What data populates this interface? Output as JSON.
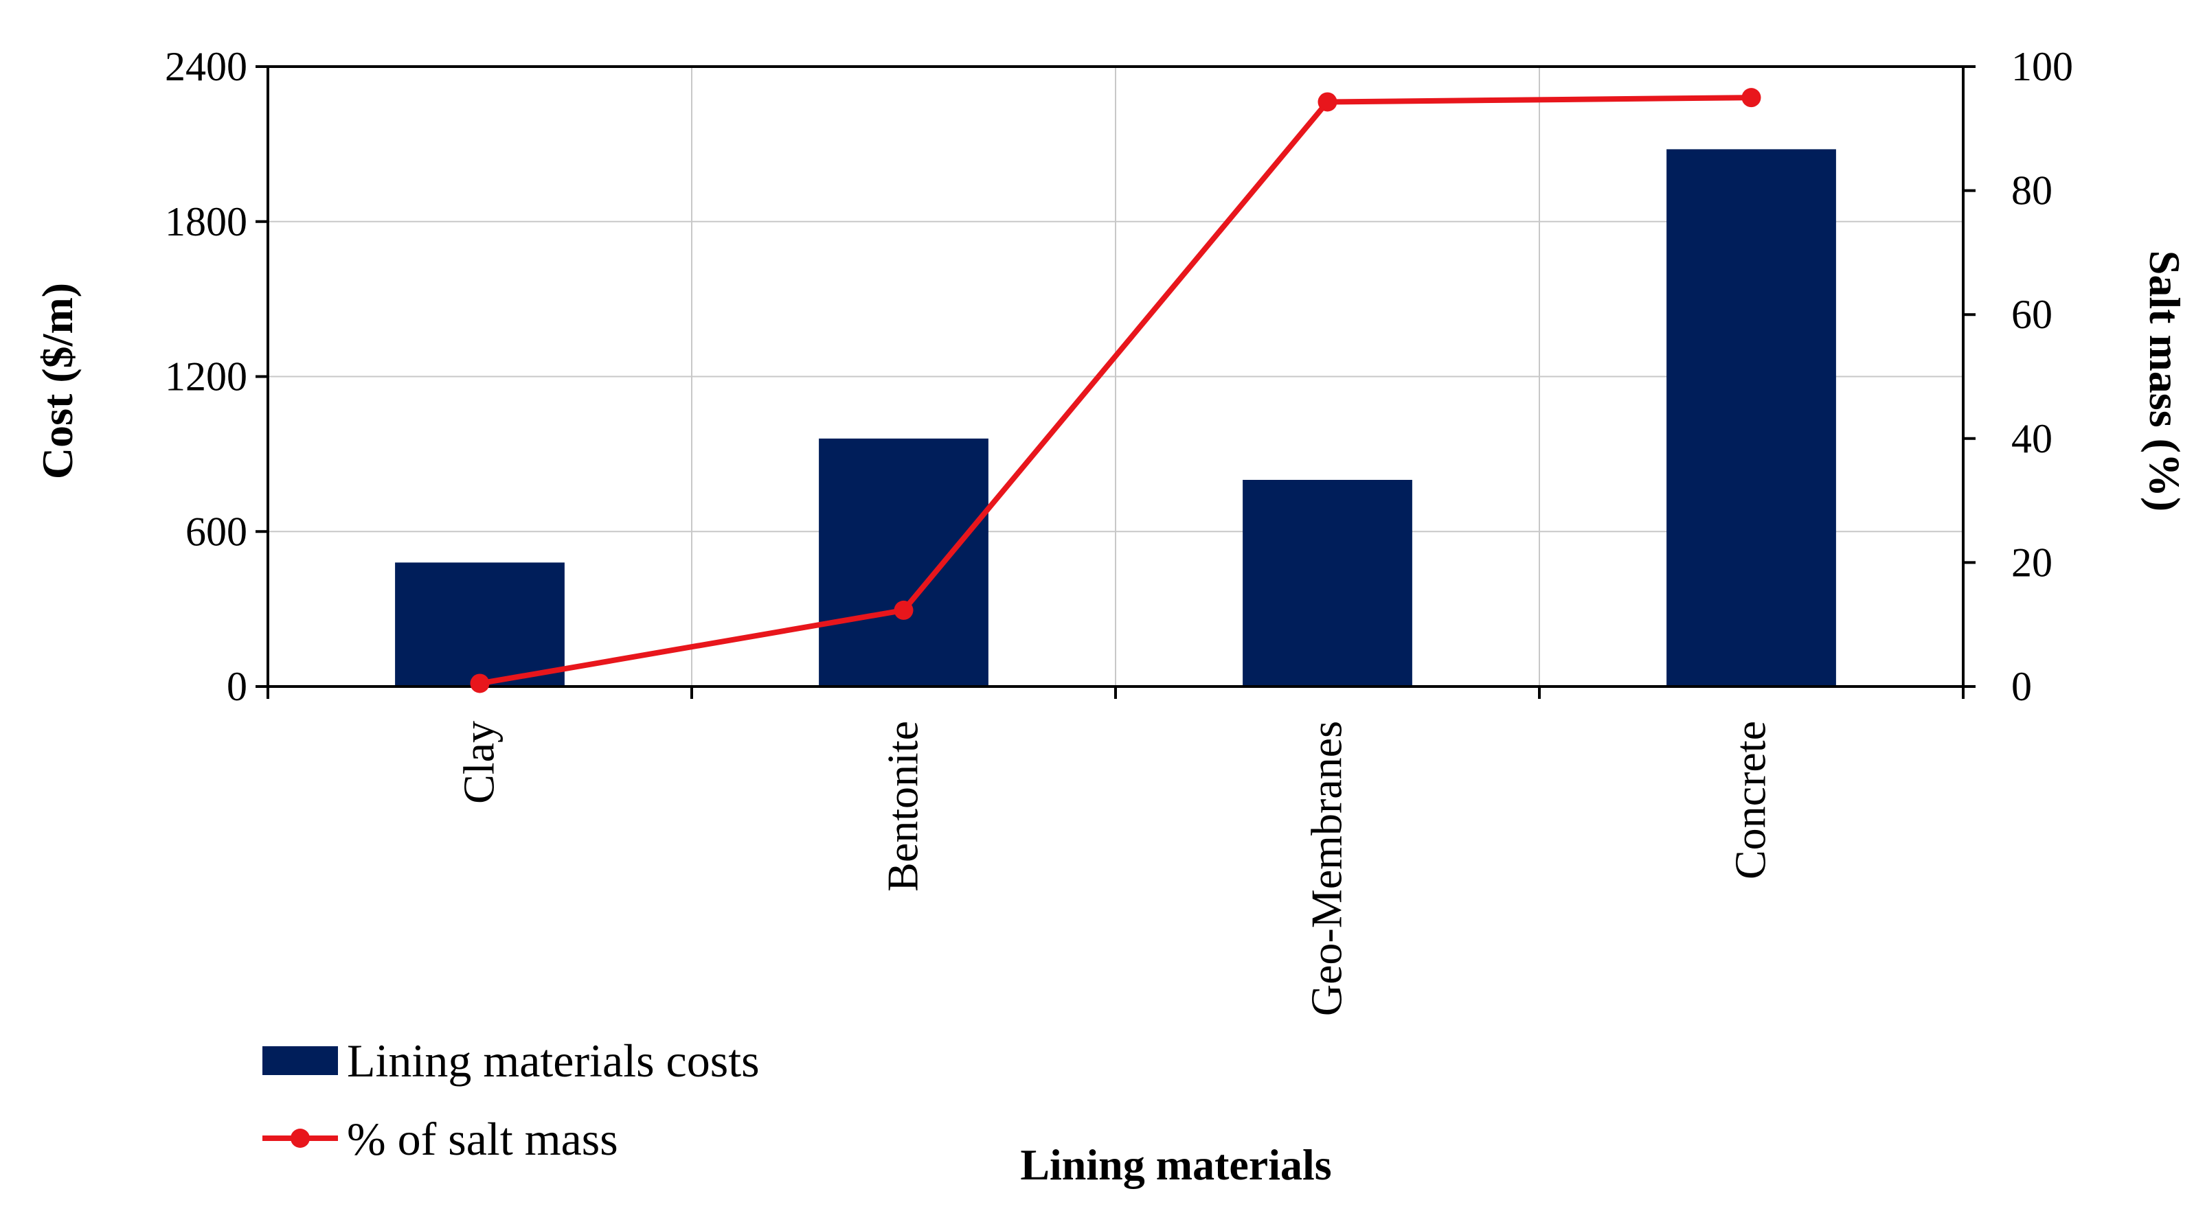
{
  "chart_data": {
    "type": "bar",
    "categories": [
      "Clay",
      "Bentonite",
      "Geo-Membranes",
      "Concrete"
    ],
    "series": [
      {
        "name": "Lining materials costs",
        "kind": "bar",
        "axis": "left",
        "color": "#001E5A",
        "values": [
          480,
          960,
          800,
          2080
        ]
      },
      {
        "name": "% of salt mass",
        "kind": "line",
        "axis": "right",
        "color": "#E8161C",
        "values": [
          0.5,
          12.3,
          94.3,
          95
        ]
      }
    ],
    "xlabel": "Lining materials",
    "ylabel": "Cost ($/m)",
    "y2label": "Salt mass (%)",
    "ylim": [
      0,
      2400
    ],
    "y2lim": [
      0,
      100
    ],
    "yticks": [
      "0",
      "600",
      "1200",
      "1800",
      "2400"
    ],
    "y2ticks": [
      "0",
      "20",
      "40",
      "60",
      "80",
      "100"
    ],
    "grid": true,
    "legend_position": "bottom-left"
  }
}
